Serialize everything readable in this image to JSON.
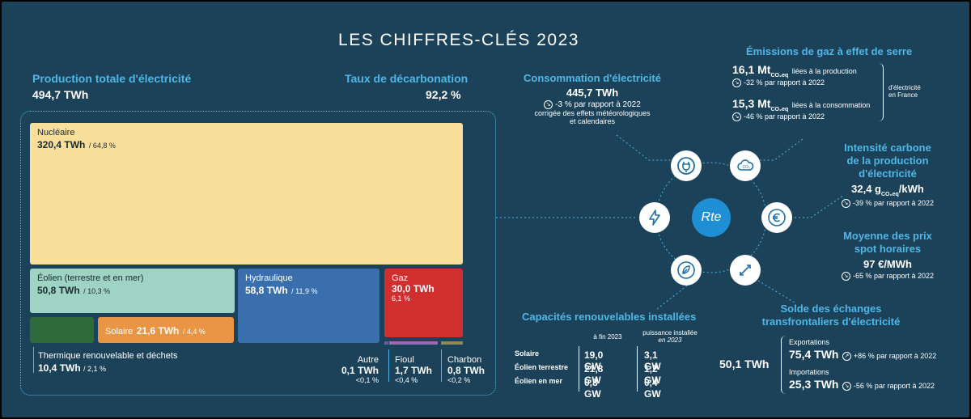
{
  "title": "LES CHIFFRES-CLÉS 2023",
  "production": {
    "label": "Production totale d'électricité",
    "value": "494,7 TWh"
  },
  "decarbonation": {
    "label": "Taux de décarbonation",
    "value": "92,2 %"
  },
  "treemap": {
    "nucleaire": {
      "name": "Nucléaire",
      "value": "320,4 TWh",
      "pct": "/ 64,8 %"
    },
    "eolien": {
      "name": "Éolien (terrestre et en mer)",
      "value": "50,8 TWh",
      "pct": "/ 10,3 %"
    },
    "hydraulique": {
      "name": "Hydraulique",
      "value": "58,8 TWh",
      "pct": "/ 11,9 %"
    },
    "gaz": {
      "name": "Gaz",
      "value": "30,0 TWh",
      "pct": "6,1 %"
    },
    "solaire": {
      "name": "Solaire",
      "value": "21,6 TWh",
      "pct": "/ 4,4 %"
    },
    "thermique": {
      "name": "Thermique renouvelable et déchets",
      "value": "10,4 TWh",
      "pct": "/ 2,1 %"
    },
    "autre": {
      "name": "Autre",
      "value": "0,1 TWh",
      "pct": "<0,1 %"
    },
    "fioul": {
      "name": "Fioul",
      "value": "1,7 TWh",
      "pct": "<0,4 %"
    },
    "charbon": {
      "name": "Charbon",
      "value": "0,8 TWh",
      "pct": "<0,2 %"
    }
  },
  "consommation": {
    "label": "Consommation d'électricité",
    "value": "445,7 TWh",
    "change": "-3 % par rapport à 2022",
    "note1": "corrigée des effets météorologiques",
    "note2": "et calendaires"
  },
  "emissions": {
    "label": "Émissions de gaz à effet de serre",
    "prod_value": "16,1 Mt",
    "prod_sub": "CO₂eq",
    "prod_desc": "liées à la production",
    "prod_change": "-32 % par rapport à 2022",
    "cons_value": "15,3 Mt",
    "cons_sub": "CO₂eq",
    "cons_desc": "liées à la consommation",
    "cons_change": "-46 % par rapport à 2022",
    "scope1": "d'électricité",
    "scope2": "en France"
  },
  "intensite": {
    "label1": "Intensité carbone",
    "label2": "de la production",
    "label3": "d'électricité",
    "value": "32,4 g",
    "sub": "CO₂eq",
    "unit": "/kWh",
    "change": "-39 % par rapport à 2022"
  },
  "prix": {
    "label1": "Moyenne des prix",
    "label2": "spot horaires",
    "value": "97 €/MWh",
    "change": "-65 % par rapport à 2022"
  },
  "logo": "Rte",
  "capacites": {
    "label": "Capacités renouvelables installées",
    "col1": "à fin 2023",
    "col2a": "puissance installée",
    "col2b": "en 2023",
    "rows": [
      {
        "name": "Solaire",
        "fin": "19,0 GW",
        "inst": "3,1 GW"
      },
      {
        "name": "Éolien terrestre",
        "fin": "21,8 GW",
        "inst": "1,2 GW"
      },
      {
        "name": "Éolien en mer",
        "fin": "0,8 GW",
        "inst": "0,4 GW"
      }
    ]
  },
  "echanges": {
    "label1": "Solde des échanges",
    "label2": "transfrontaliers d'électricité",
    "solde": "50,1 TWh",
    "exp_label": "Exportations",
    "exp_value": "75,4 TWh",
    "exp_change": "+86 % par rapport à 2022",
    "imp_label": "Importations",
    "imp_value": "25,3 TWh",
    "imp_change": "-56 % par rapport à 2022"
  },
  "colors": {
    "background": "#1b4259",
    "accent": "#4fb7e6",
    "nucleaire": "#f8df9c",
    "eolien": "#9fd3c3",
    "hydraulique": "#3a6fae",
    "gaz": "#d12e2e",
    "solaire": "#ea9543",
    "thermique": "#2d6b3a",
    "autre": "#6b5aa4",
    "fioul": "#8f6fb0",
    "charbon": "#8a8a5a"
  }
}
